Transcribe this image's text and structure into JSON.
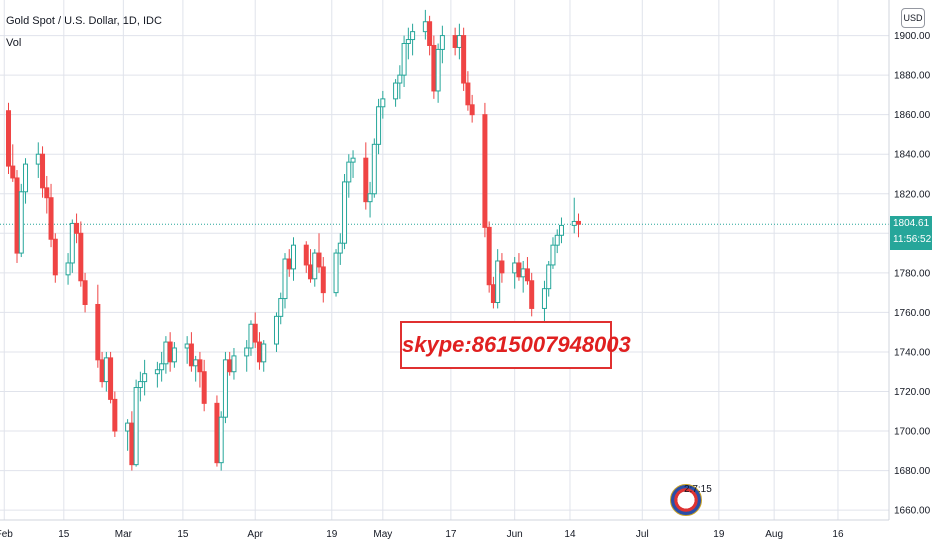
{
  "header": {
    "symbol_title": "Gold Spot / U.S. Dollar, 1D, IDC",
    "indicator": "Vol"
  },
  "currency_button": "USD",
  "last_price": {
    "value": "1804.61",
    "countdown": "11:56:52"
  },
  "watermark_text": "skype:8615007948003",
  "badge_time": "2:7:15",
  "colors": {
    "up": "#26a69a",
    "down": "#ef4444",
    "grid": "#e0e3eb",
    "axis_text": "#131722",
    "price_line": "#26a69a",
    "watermark": "#e02020"
  },
  "chart_data": {
    "type": "candlestick",
    "title": "Gold Spot / U.S. Dollar, 1D, IDC",
    "ylim": [
      1655,
      1918
    ],
    "y_ticks": [
      1660,
      1680,
      1700,
      1720,
      1740,
      1760,
      1780,
      1800,
      1820,
      1840,
      1860,
      1880,
      1900
    ],
    "y_tick_labels": [
      "1660.00",
      "1680.00",
      "1700.00",
      "1720.00",
      "1740.00",
      "1760.00",
      "1780.00",
      "1800.00",
      "1820.00",
      "1840.00",
      "1860.00",
      "1880.00",
      "1900.00"
    ],
    "x_ticks": [
      {
        "label": "Feb",
        "day": 0
      },
      {
        "label": "15",
        "day": 14
      },
      {
        "label": "Mar",
        "day": 28
      },
      {
        "label": "15",
        "day": 42
      },
      {
        "label": "Apr",
        "day": 59
      },
      {
        "label": "19",
        "day": 77
      },
      {
        "label": "May",
        "day": 89
      },
      {
        "label": "17",
        "day": 105
      },
      {
        "label": "Jun",
        "day": 120
      },
      {
        "label": "14",
        "day": 133
      },
      {
        "label": "Jul",
        "day": 150
      },
      {
        "label": "19",
        "day": 168
      },
      {
        "label": "Aug",
        "day": 181
      },
      {
        "label": "16",
        "day": 196
      }
    ],
    "x_range_days": [
      -1,
      208
    ],
    "grid": true,
    "last_price_level": 1804.61,
    "candles": [
      [
        1,
        1862,
        1866,
        1830,
        1834
      ],
      [
        2,
        1834,
        1845,
        1826,
        1828
      ],
      [
        3,
        1828,
        1832,
        1785,
        1790
      ],
      [
        4,
        1790,
        1825,
        1788,
        1821
      ],
      [
        5,
        1821,
        1838,
        1815,
        1835
      ],
      [
        8,
        1835,
        1846,
        1828,
        1840
      ],
      [
        9,
        1840,
        1844,
        1818,
        1823
      ],
      [
        10,
        1823,
        1829,
        1810,
        1818
      ],
      [
        11,
        1818,
        1825,
        1793,
        1797
      ],
      [
        12,
        1797,
        1800,
        1775,
        1779
      ],
      [
        15,
        1779,
        1790,
        1774,
        1785
      ],
      [
        16,
        1785,
        1807,
        1780,
        1805
      ],
      [
        17,
        1805,
        1810,
        1795,
        1800
      ],
      [
        18,
        1800,
        1806,
        1773,
        1776
      ],
      [
        19,
        1776,
        1780,
        1760,
        1764
      ],
      [
        22,
        1764,
        1774,
        1732,
        1736
      ],
      [
        23,
        1736,
        1740,
        1722,
        1725
      ],
      [
        24,
        1725,
        1740,
        1720,
        1737
      ],
      [
        25,
        1737,
        1740,
        1714,
        1716
      ],
      [
        26,
        1716,
        1720,
        1697,
        1700
      ],
      [
        29,
        1700,
        1706,
        1690,
        1704
      ],
      [
        30,
        1704,
        1710,
        1680,
        1683
      ],
      [
        31,
        1683,
        1726,
        1682,
        1722
      ],
      [
        32,
        1722,
        1730,
        1715,
        1725
      ],
      [
        33,
        1725,
        1736,
        1718,
        1729
      ],
      [
        36,
        1729,
        1735,
        1722,
        1731
      ],
      [
        37,
        1731,
        1740,
        1725,
        1734
      ],
      [
        38,
        1734,
        1748,
        1729,
        1745
      ],
      [
        39,
        1745,
        1750,
        1730,
        1735
      ],
      [
        40,
        1735,
        1745,
        1732,
        1742
      ],
      [
        43,
        1742,
        1748,
        1734,
        1744
      ],
      [
        44,
        1744,
        1750,
        1730,
        1733
      ],
      [
        45,
        1733,
        1738,
        1725,
        1736
      ],
      [
        46,
        1736,
        1740,
        1722,
        1730
      ],
      [
        47,
        1730,
        1736,
        1710,
        1714
      ],
      [
        50,
        1714,
        1718,
        1682,
        1684
      ],
      [
        51,
        1684,
        1710,
        1680,
        1707
      ],
      [
        52,
        1707,
        1740,
        1704,
        1736
      ],
      [
        53,
        1736,
        1740,
        1728,
        1730
      ],
      [
        54,
        1730,
        1742,
        1726,
        1738
      ],
      [
        57,
        1738,
        1746,
        1730,
        1742
      ],
      [
        58,
        1742,
        1756,
        1738,
        1754
      ],
      [
        59,
        1754,
        1760,
        1742,
        1745
      ],
      [
        60,
        1745,
        1750,
        1731,
        1735
      ],
      [
        61,
        1735,
        1746,
        1730,
        1744
      ],
      [
        64,
        1744,
        1760,
        1740,
        1758
      ],
      [
        65,
        1758,
        1770,
        1754,
        1767
      ],
      [
        66,
        1767,
        1790,
        1762,
        1787
      ],
      [
        67,
        1787,
        1792,
        1778,
        1782
      ],
      [
        68,
        1782,
        1798,
        1776,
        1794
      ],
      [
        71,
        1794,
        1796,
        1780,
        1784
      ],
      [
        72,
        1784,
        1792,
        1775,
        1777
      ],
      [
        73,
        1777,
        1792,
        1773,
        1790
      ],
      [
        74,
        1790,
        1800,
        1780,
        1783
      ],
      [
        75,
        1783,
        1788,
        1765,
        1770
      ],
      [
        78,
        1770,
        1792,
        1768,
        1790
      ],
      [
        79,
        1790,
        1800,
        1784,
        1795
      ],
      [
        80,
        1795,
        1830,
        1792,
        1826
      ],
      [
        81,
        1826,
        1840,
        1818,
        1836
      ],
      [
        82,
        1836,
        1842,
        1828,
        1838
      ],
      [
        85,
        1838,
        1846,
        1812,
        1816
      ],
      [
        86,
        1816,
        1826,
        1808,
        1820
      ],
      [
        87,
        1820,
        1848,
        1818,
        1845
      ],
      [
        88,
        1845,
        1868,
        1840,
        1864
      ],
      [
        89,
        1864,
        1872,
        1858,
        1868
      ],
      [
        92,
        1868,
        1878,
        1864,
        1876
      ],
      [
        93,
        1876,
        1885,
        1868,
        1880
      ],
      [
        94,
        1880,
        1900,
        1874,
        1896
      ],
      [
        95,
        1896,
        1904,
        1888,
        1898
      ],
      [
        96,
        1898,
        1906,
        1890,
        1902
      ],
      [
        99,
        1902,
        1913,
        1898,
        1907
      ],
      [
        100,
        1907,
        1910,
        1890,
        1895
      ],
      [
        101,
        1895,
        1900,
        1868,
        1872
      ],
      [
        102,
        1872,
        1896,
        1866,
        1893
      ],
      [
        103,
        1893,
        1905,
        1886,
        1900
      ],
      [
        106,
        1900,
        1904,
        1890,
        1894
      ],
      [
        107,
        1894,
        1906,
        1888,
        1900
      ],
      [
        108,
        1900,
        1904,
        1872,
        1876
      ],
      [
        109,
        1876,
        1882,
        1862,
        1865
      ],
      [
        110,
        1865,
        1870,
        1856,
        1860
      ],
      [
        113,
        1860,
        1866,
        1798,
        1803
      ],
      [
        114,
        1803,
        1806,
        1770,
        1774
      ],
      [
        115,
        1774,
        1778,
        1762,
        1765
      ],
      [
        116,
        1765,
        1792,
        1762,
        1786
      ],
      [
        117,
        1786,
        1790,
        1775,
        1780
      ],
      [
        120,
        1780,
        1788,
        1772,
        1785
      ],
      [
        121,
        1785,
        1790,
        1776,
        1778
      ],
      [
        122,
        1778,
        1786,
        1770,
        1782
      ],
      [
        123,
        1782,
        1788,
        1774,
        1776
      ],
      [
        124,
        1776,
        1780,
        1758,
        1762
      ],
      [
        127,
        1762,
        1776,
        1752,
        1772
      ],
      [
        128,
        1772,
        1786,
        1768,
        1784
      ],
      [
        129,
        1784,
        1798,
        1782,
        1794
      ],
      [
        130,
        1794,
        1802,
        1790,
        1799
      ],
      [
        131,
        1799,
        1808,
        1795,
        1804
      ],
      [
        134,
        1804,
        1818,
        1800,
        1806
      ],
      [
        135,
        1806,
        1810,
        1798,
        1804.61
      ]
    ]
  }
}
